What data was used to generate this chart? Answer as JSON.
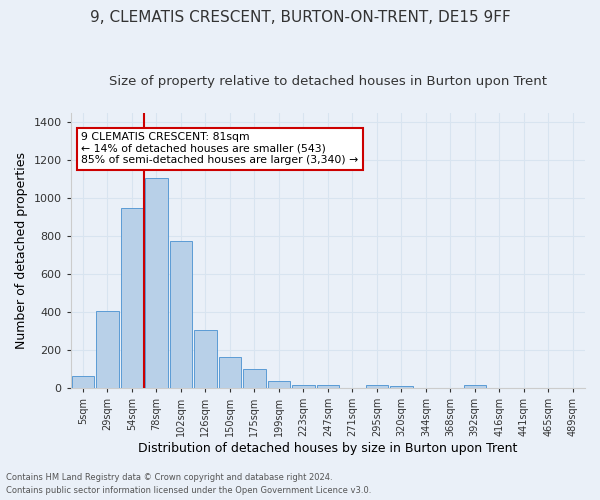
{
  "title": "9, CLEMATIS CRESCENT, BURTON-ON-TRENT, DE15 9FF",
  "subtitle": "Size of property relative to detached houses in Burton upon Trent",
  "xlabel": "Distribution of detached houses by size in Burton upon Trent",
  "ylabel": "Number of detached properties",
  "categories": [
    "5sqm",
    "29sqm",
    "54sqm",
    "78sqm",
    "102sqm",
    "126sqm",
    "150sqm",
    "175sqm",
    "199sqm",
    "223sqm",
    "247sqm",
    "271sqm",
    "295sqm",
    "320sqm",
    "344sqm",
    "368sqm",
    "392sqm",
    "416sqm",
    "441sqm",
    "465sqm",
    "489sqm"
  ],
  "values": [
    65,
    405,
    950,
    1105,
    775,
    305,
    165,
    100,
    35,
    15,
    15,
    0,
    15,
    10,
    0,
    0,
    15,
    0,
    0,
    0,
    0
  ],
  "bar_color": "#b8d0e8",
  "bar_edge_color": "#5b9bd5",
  "annotation_text": "9 CLEMATIS CRESCENT: 81sqm\n← 14% of detached houses are smaller (543)\n85% of semi-detached houses are larger (3,340) →",
  "annotation_box_color": "#ffffff",
  "annotation_box_edge": "#cc0000",
  "vline_color": "#cc0000",
  "vline_x": 3.0,
  "footer1": "Contains HM Land Registry data © Crown copyright and database right 2024.",
  "footer2": "Contains public sector information licensed under the Open Government Licence v3.0.",
  "ylim": [
    0,
    1450
  ],
  "bg_color": "#eaf0f8",
  "grid_color": "#d8e4f0",
  "title_fontsize": 11,
  "subtitle_fontsize": 9.5,
  "ylabel_fontsize": 9,
  "xlabel_fontsize": 9
}
